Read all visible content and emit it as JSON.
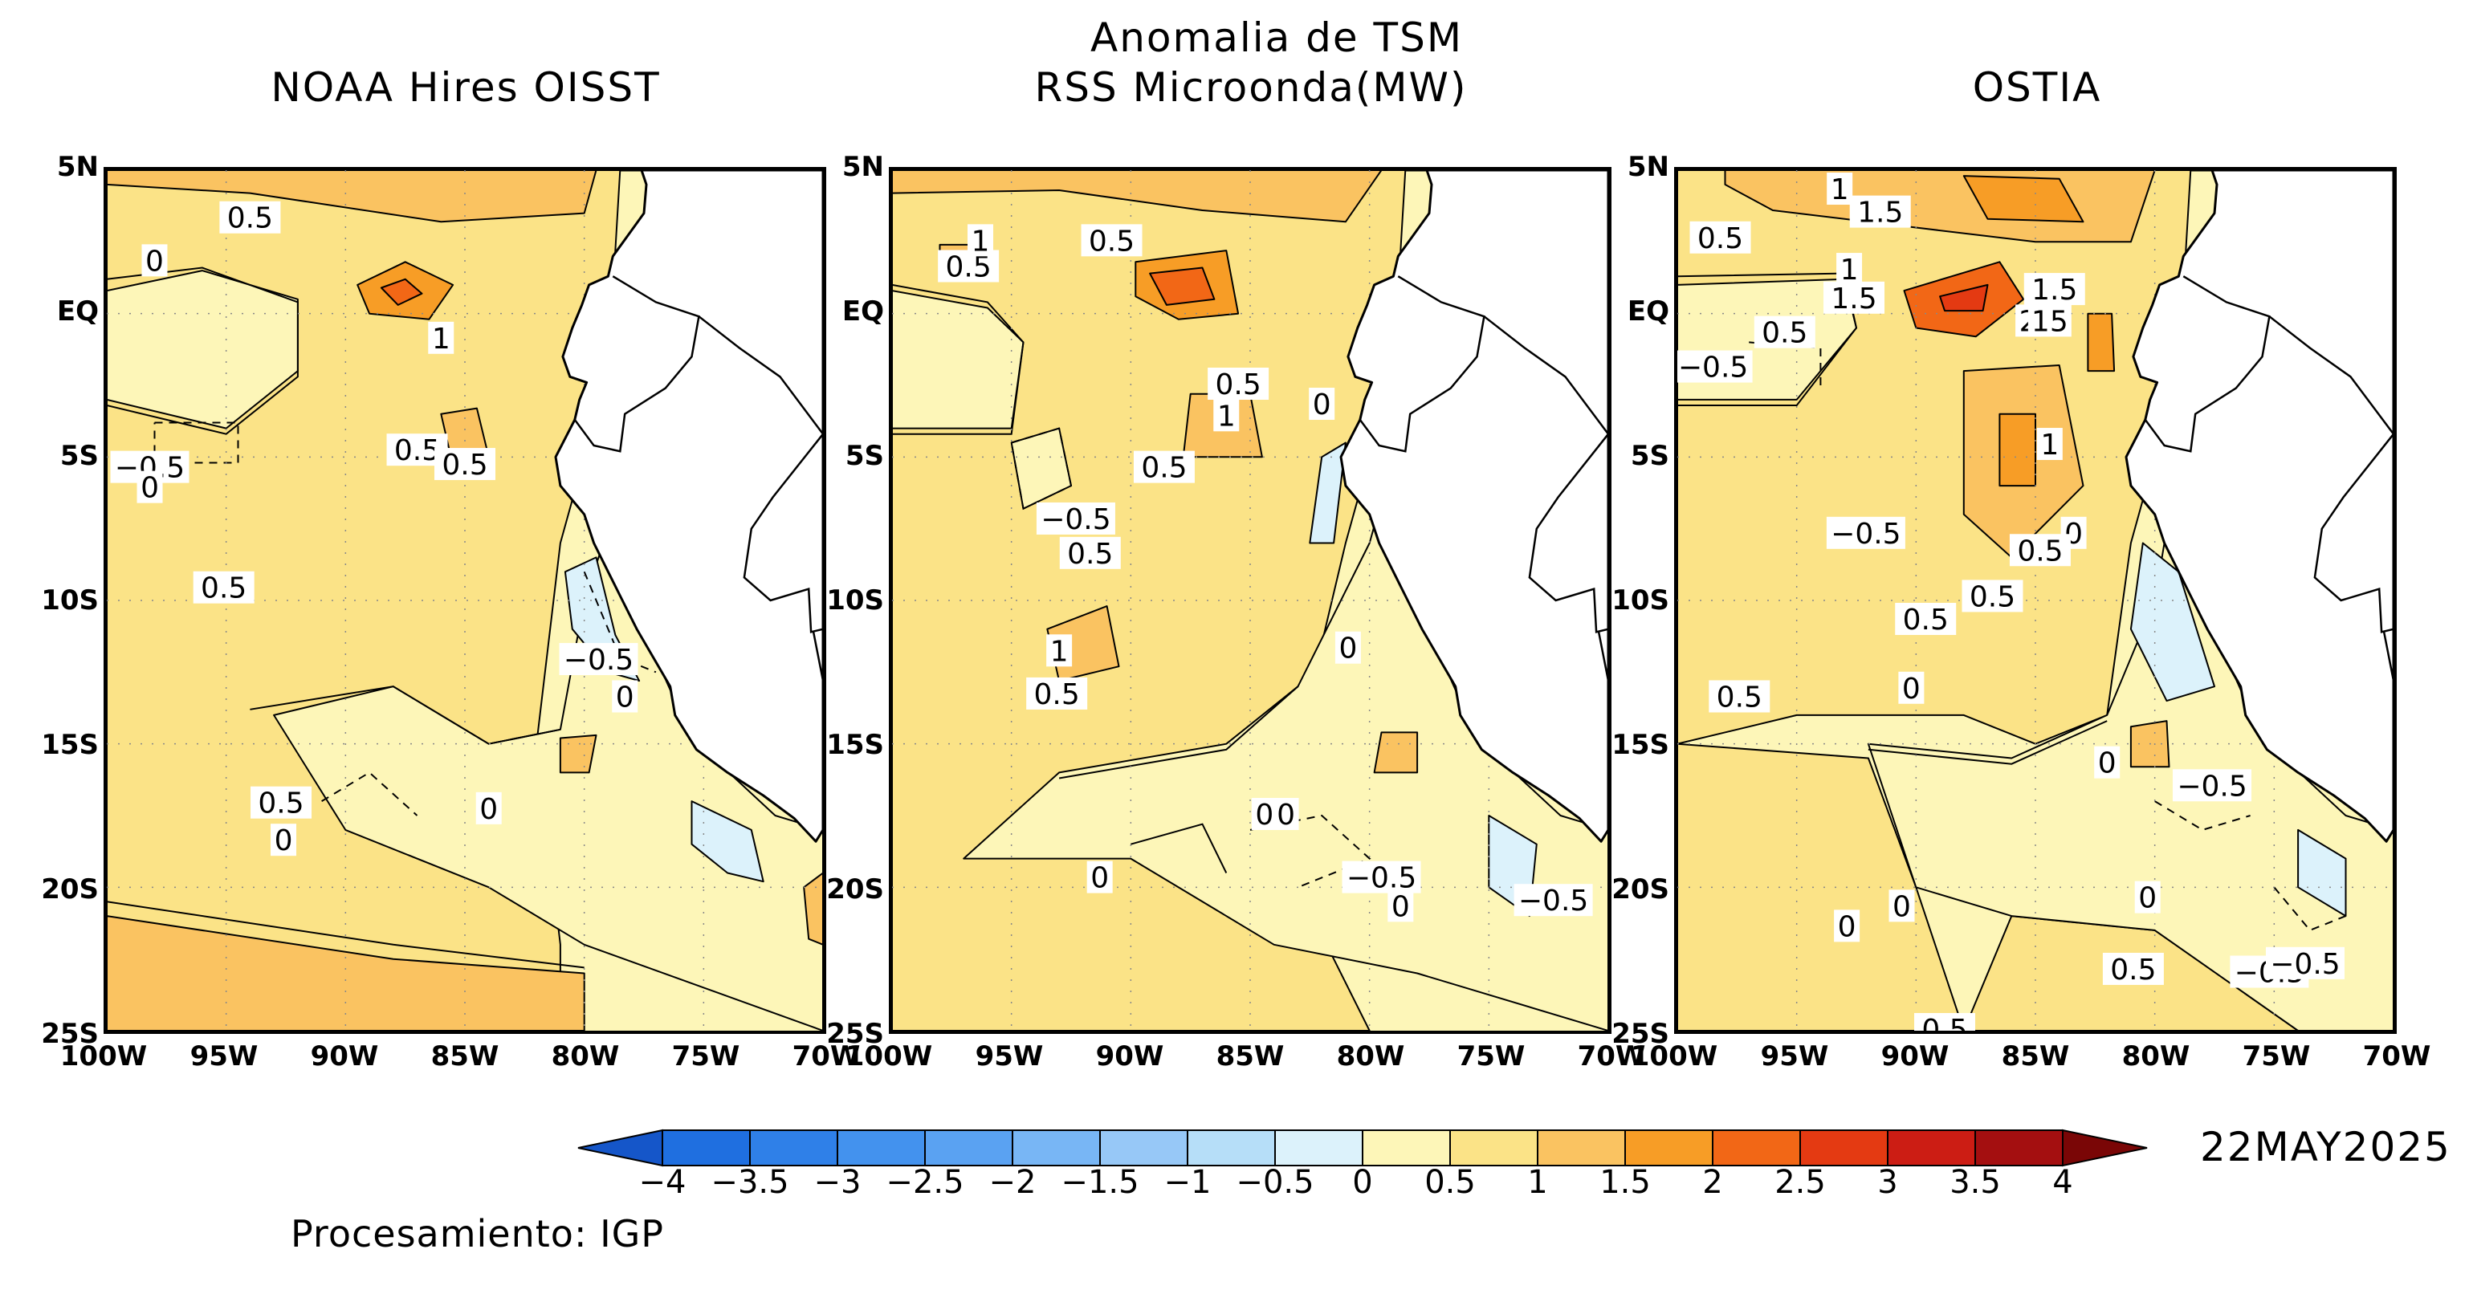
{
  "header": {
    "main_title": "Anomalia de TSM"
  },
  "panels": [
    {
      "title": "NOAA Hires OISST",
      "contour_labels": [
        "0.5",
        "0",
        "1",
        "0.5",
        "0.5",
        "−0.5",
        "0",
        "0.5",
        "−0.5",
        "0",
        "0.5",
        "0",
        "0"
      ]
    },
    {
      "title": "RSS Microonda(MW)",
      "contour_labels": [
        "0.5",
        "1",
        "0.5",
        "0.5",
        "1",
        "0",
        "0.5",
        "−0.5",
        "0.5",
        "0",
        "1",
        "0.5",
        "0",
        "0",
        "−0.5",
        "0",
        "−0.5",
        "0"
      ]
    },
    {
      "title": "OSTIA",
      "contour_labels": [
        "1",
        "1.5",
        "0.5",
        "1",
        "1.5",
        "0.5",
        "1.5",
        "2",
        "15",
        "−0.5",
        "1",
        "0",
        "−0.5",
        "0.5",
        "0",
        "0.5",
        "0.5",
        "0.5",
        "0",
        "−0.5",
        "0",
        "0",
        "0",
        "−0.5",
        "−0.5",
        "0.5",
        "0.5"
      ]
    }
  ],
  "axes": {
    "y_ticks": [
      "5N",
      "EQ",
      "5S",
      "10S",
      "15S",
      "20S",
      "25S"
    ],
    "x_ticks": [
      "100W",
      "95W",
      "90W",
      "85W",
      "80W",
      "75W",
      "70W"
    ]
  },
  "colorbar": {
    "labels": [
      "−4",
      "−3.5",
      "−3",
      "−2.5",
      "−2",
      "−1.5",
      "−1",
      "−0.5",
      "0",
      "0.5",
      "1",
      "1.5",
      "2",
      "2.5",
      "3",
      "3.5",
      "4"
    ],
    "colors": [
      "#1f6fe0",
      "#2f80e8",
      "#4392ee",
      "#5aa2f2",
      "#78b6f5",
      "#97c8f7",
      "#b6def8",
      "#dcf2fb",
      "#fdf6b8",
      "#fbe387",
      "#fac361",
      "#f79d26",
      "#f26716",
      "#e43a12",
      "#cc1d14",
      "#a40f10"
    ],
    "low_arrow_color": "#1556c9",
    "high_arrow_color": "#7a0606"
  },
  "date": "22MAY2025",
  "credit": "Procesamiento: IGP",
  "chart_data": {
    "type": "heatmap",
    "title": "Anomalia de TSM",
    "panels": [
      "NOAA Hires OISST",
      "RSS Microonda(MW)",
      "OSTIA"
    ],
    "lon_range": [
      -100,
      -70
    ],
    "lat_range": [
      -25,
      5
    ],
    "x_tick_labels": [
      "100W",
      "95W",
      "90W",
      "85W",
      "80W",
      "75W",
      "70W"
    ],
    "y_tick_labels": [
      "5N",
      "EQ",
      "5S",
      "10S",
      "15S",
      "20S",
      "25S"
    ],
    "contour_interval": 0.5,
    "colorbar_levels": [
      -4,
      -3.5,
      -3,
      -2.5,
      -2,
      -1.5,
      -1,
      -0.5,
      0,
      0.5,
      1,
      1.5,
      2,
      2.5,
      3,
      3.5,
      4
    ],
    "date": "22MAY2025"
  }
}
